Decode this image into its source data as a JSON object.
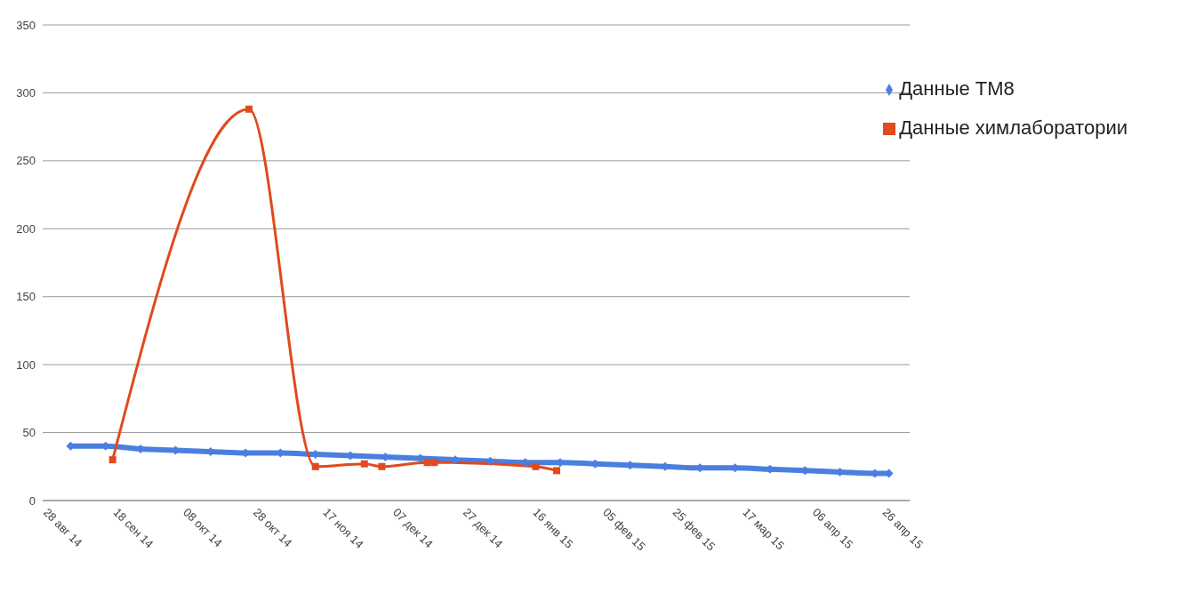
{
  "chart_data": {
    "type": "line",
    "legend": "top right",
    "grid": "y",
    "line_style": "solid",
    "ylim": [
      0,
      350
    ],
    "yticks": [
      0,
      50,
      100,
      150,
      200,
      250,
      300,
      350
    ],
    "xlim": [
      "2014-08-28",
      "2015-05-03"
    ],
    "xticks": [
      {
        "value": "2014-08-28",
        "label": "28 авг 14"
      },
      {
        "value": "2014-09-17",
        "label": "18 сен 14"
      },
      {
        "value": "2014-10-07",
        "label": "08 окт 14"
      },
      {
        "value": "2014-10-27",
        "label": "28 окт 14"
      },
      {
        "value": "2014-11-16",
        "label": "17 ноя 14"
      },
      {
        "value": "2014-12-06",
        "label": "07 дек 14"
      },
      {
        "value": "2014-12-26",
        "label": "27 дек 14"
      },
      {
        "value": "2015-01-15",
        "label": "16 янв 15"
      },
      {
        "value": "2015-02-04",
        "label": "05 фев 15"
      },
      {
        "value": "2015-02-24",
        "label": "25 фев 15"
      },
      {
        "value": "2015-03-16",
        "label": "17 мар 15"
      },
      {
        "value": "2015-04-05",
        "label": "06 апр 15"
      },
      {
        "value": "2015-04-25",
        "label": "26 апр 15"
      }
    ],
    "series": [
      {
        "name": "Данные ТМ8",
        "color": "#4a7fe0",
        "marker": "diamond",
        "x": [
          "2014-09-05",
          "2014-09-15",
          "2014-09-25",
          "2014-10-05",
          "2014-10-15",
          "2014-10-25",
          "2014-11-04",
          "2014-11-14",
          "2014-11-24",
          "2014-12-04",
          "2014-12-14",
          "2014-12-24",
          "2015-01-03",
          "2015-01-13",
          "2015-01-23",
          "2015-02-02",
          "2015-02-12",
          "2015-02-22",
          "2015-03-04",
          "2015-03-14",
          "2015-03-24",
          "2015-04-03",
          "2015-04-13",
          "2015-04-23",
          "2015-04-27"
        ],
        "values": [
          40,
          40,
          38,
          37,
          36,
          35,
          35,
          34,
          33,
          32,
          31,
          30,
          29,
          28,
          28,
          27,
          26,
          25,
          24,
          24,
          23,
          22,
          21,
          20,
          20
        ]
      },
      {
        "name": "Данные химлаборатории",
        "color": "#e04a1e",
        "marker": "square",
        "x": [
          "2014-09-17",
          "2014-10-26",
          "2014-11-14",
          "2014-11-28",
          "2014-12-03",
          "2014-12-16",
          "2014-12-18",
          "2015-01-16",
          "2015-01-22"
        ],
        "values": [
          30,
          288,
          25,
          27,
          25,
          28,
          28,
          25,
          22
        ]
      }
    ]
  }
}
